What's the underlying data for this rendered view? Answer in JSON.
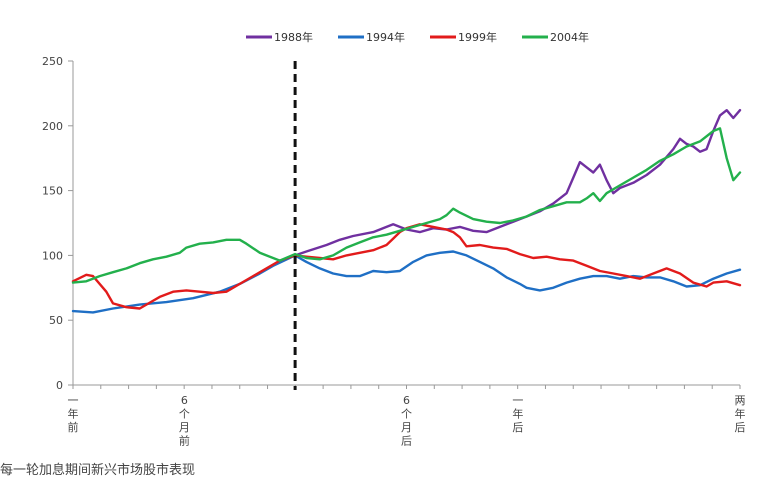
{
  "caption": "每一轮加息期间新兴市场股市表现",
  "chart_data": {
    "type": "line",
    "title": "",
    "xlabel": "",
    "ylabel": "",
    "ylim": [
      0,
      250
    ],
    "yticks": [
      0,
      50,
      100,
      150,
      200,
      250
    ],
    "x_range": [
      0,
      100
    ],
    "xtick_labels": [
      {
        "x": 0,
        "label": "一年前"
      },
      {
        "x": 16.7,
        "label": "6个月前"
      },
      {
        "x": 50,
        "label": "6个月后"
      },
      {
        "x": 66.7,
        "label": "一年后"
      },
      {
        "x": 100,
        "label": "两年后"
      }
    ],
    "event_line": {
      "x": 33.3,
      "style": "dashed"
    },
    "legend_position": "top",
    "grid": false,
    "series": [
      {
        "name": "1988年",
        "color": "#7030A0",
        "points": [
          [
            33.3,
            100
          ],
          [
            35,
            103
          ],
          [
            38,
            108
          ],
          [
            40,
            112
          ],
          [
            42,
            115
          ],
          [
            45,
            118
          ],
          [
            47,
            122
          ],
          [
            48,
            124
          ],
          [
            50,
            120
          ],
          [
            52,
            118
          ],
          [
            54,
            121
          ],
          [
            56,
            120
          ],
          [
            58,
            122
          ],
          [
            60,
            119
          ],
          [
            62,
            118
          ],
          [
            64,
            122
          ],
          [
            66,
            126
          ],
          [
            68,
            130
          ],
          [
            70,
            134
          ],
          [
            72,
            140
          ],
          [
            74,
            148
          ],
          [
            75,
            160
          ],
          [
            76,
            172
          ],
          [
            77,
            168
          ],
          [
            78,
            164
          ],
          [
            79,
            170
          ],
          [
            80,
            158
          ],
          [
            81,
            148
          ],
          [
            82,
            152
          ],
          [
            84,
            156
          ],
          [
            86,
            162
          ],
          [
            88,
            170
          ],
          [
            90,
            182
          ],
          [
            91,
            190
          ],
          [
            92,
            186
          ],
          [
            93,
            184
          ],
          [
            94,
            180
          ],
          [
            95,
            182
          ],
          [
            96,
            196
          ],
          [
            97,
            208
          ],
          [
            98,
            212
          ],
          [
            99,
            206
          ],
          [
            100,
            212
          ]
        ]
      },
      {
        "name": "1994年",
        "color": "#1F6FC5",
        "points": [
          [
            0,
            57
          ],
          [
            3,
            56
          ],
          [
            6,
            59
          ],
          [
            10,
            62
          ],
          [
            14,
            64
          ],
          [
            18,
            67
          ],
          [
            22,
            72
          ],
          [
            25,
            78
          ],
          [
            28,
            86
          ],
          [
            30,
            92
          ],
          [
            33.3,
            100
          ],
          [
            35,
            95
          ],
          [
            37,
            90
          ],
          [
            39,
            86
          ],
          [
            41,
            84
          ],
          [
            43,
            84
          ],
          [
            45,
            88
          ],
          [
            47,
            87
          ],
          [
            49,
            88
          ],
          [
            51,
            95
          ],
          [
            53,
            100
          ],
          [
            55,
            102
          ],
          [
            57,
            103
          ],
          [
            59,
            100
          ],
          [
            61,
            95
          ],
          [
            63,
            90
          ],
          [
            65,
            83
          ],
          [
            67,
            78
          ],
          [
            68,
            75
          ],
          [
            70,
            73
          ],
          [
            72,
            75
          ],
          [
            74,
            79
          ],
          [
            76,
            82
          ],
          [
            78,
            84
          ],
          [
            80,
            84
          ],
          [
            82,
            82
          ],
          [
            84,
            84
          ],
          [
            86,
            83
          ],
          [
            88,
            83
          ],
          [
            90,
            80
          ],
          [
            92,
            76
          ],
          [
            94,
            77
          ],
          [
            96,
            82
          ],
          [
            98,
            86
          ],
          [
            100,
            89
          ]
        ]
      },
      {
        "name": "1999年",
        "color": "#E21B1B",
        "points": [
          [
            0,
            80
          ],
          [
            2,
            85
          ],
          [
            3,
            84
          ],
          [
            5,
            72
          ],
          [
            6,
            63
          ],
          [
            8,
            60
          ],
          [
            10,
            59
          ],
          [
            11,
            62
          ],
          [
            13,
            68
          ],
          [
            15,
            72
          ],
          [
            17,
            73
          ],
          [
            19,
            72
          ],
          [
            21,
            71
          ],
          [
            23,
            72
          ],
          [
            25,
            78
          ],
          [
            27,
            84
          ],
          [
            29,
            90
          ],
          [
            31,
            96
          ],
          [
            33.3,
            100
          ],
          [
            35,
            99
          ],
          [
            37,
            98
          ],
          [
            39,
            97
          ],
          [
            41,
            100
          ],
          [
            43,
            102
          ],
          [
            45,
            104
          ],
          [
            47,
            108
          ],
          [
            48,
            113
          ],
          [
            49,
            118
          ],
          [
            50,
            121
          ],
          [
            52,
            124
          ],
          [
            54,
            122
          ],
          [
            56,
            120
          ],
          [
            57,
            118
          ],
          [
            58,
            114
          ],
          [
            59,
            107
          ],
          [
            61,
            108
          ],
          [
            63,
            106
          ],
          [
            65,
            105
          ],
          [
            67,
            101
          ],
          [
            69,
            98
          ],
          [
            71,
            99
          ],
          [
            73,
            97
          ],
          [
            75,
            96
          ],
          [
            77,
            92
          ],
          [
            79,
            88
          ],
          [
            81,
            86
          ],
          [
            83,
            84
          ],
          [
            85,
            82
          ],
          [
            87,
            86
          ],
          [
            89,
            90
          ],
          [
            91,
            86
          ],
          [
            93,
            79
          ],
          [
            95,
            76
          ],
          [
            96,
            79
          ],
          [
            98,
            80
          ],
          [
            100,
            77
          ]
        ]
      },
      {
        "name": "2004年",
        "color": "#23B04C",
        "points": [
          [
            0,
            79
          ],
          [
            2,
            80
          ],
          [
            4,
            84
          ],
          [
            6,
            87
          ],
          [
            8,
            90
          ],
          [
            10,
            94
          ],
          [
            12,
            97
          ],
          [
            14,
            99
          ],
          [
            16,
            102
          ],
          [
            17,
            106
          ],
          [
            19,
            109
          ],
          [
            21,
            110
          ],
          [
            23,
            112
          ],
          [
            25,
            112
          ],
          [
            26,
            109
          ],
          [
            28,
            102
          ],
          [
            30,
            98
          ],
          [
            31,
            96
          ],
          [
            33.3,
            101
          ],
          [
            35,
            98
          ],
          [
            37,
            97
          ],
          [
            39,
            100
          ],
          [
            41,
            106
          ],
          [
            43,
            110
          ],
          [
            45,
            114
          ],
          [
            47,
            116
          ],
          [
            49,
            119
          ],
          [
            51,
            122
          ],
          [
            53,
            125
          ],
          [
            55,
            128
          ],
          [
            56,
            131
          ],
          [
            57,
            136
          ],
          [
            58,
            133
          ],
          [
            60,
            128
          ],
          [
            62,
            126
          ],
          [
            64,
            125
          ],
          [
            66,
            127
          ],
          [
            68,
            130
          ],
          [
            70,
            135
          ],
          [
            72,
            138
          ],
          [
            74,
            141
          ],
          [
            76,
            141
          ],
          [
            77,
            144
          ],
          [
            78,
            148
          ],
          [
            79,
            142
          ],
          [
            80,
            148
          ],
          [
            82,
            154
          ],
          [
            84,
            160
          ],
          [
            86,
            166
          ],
          [
            88,
            173
          ],
          [
            90,
            178
          ],
          [
            92,
            184
          ],
          [
            94,
            188
          ],
          [
            96,
            196
          ],
          [
            97,
            198
          ],
          [
            98,
            175
          ],
          [
            99,
            158
          ],
          [
            100,
            164
          ]
        ]
      }
    ]
  }
}
